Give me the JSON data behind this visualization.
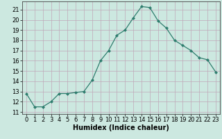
{
  "x": [
    0,
    1,
    2,
    3,
    4,
    5,
    6,
    7,
    8,
    9,
    10,
    11,
    12,
    13,
    14,
    15,
    16,
    17,
    18,
    19,
    20,
    21,
    22,
    23
  ],
  "y": [
    12.8,
    11.5,
    11.5,
    12.0,
    12.8,
    12.8,
    12.9,
    13.0,
    14.1,
    16.0,
    17.0,
    18.5,
    19.0,
    20.2,
    21.3,
    21.2,
    19.9,
    19.2,
    18.0,
    17.5,
    17.0,
    16.3,
    16.1,
    14.9
  ],
  "xlabel": "Humidex (Indice chaleur)",
  "ylim": [
    10.8,
    21.8
  ],
  "xlim": [
    -0.5,
    23.5
  ],
  "yticks": [
    11,
    12,
    13,
    14,
    15,
    16,
    17,
    18,
    19,
    20,
    21
  ],
  "xticks": [
    0,
    1,
    2,
    3,
    4,
    5,
    6,
    7,
    8,
    9,
    10,
    11,
    12,
    13,
    14,
    15,
    16,
    17,
    18,
    19,
    20,
    21,
    22,
    23
  ],
  "line_color": "#2e7d6e",
  "marker_color": "#2e7d6e",
  "bg_color": "#cce8e0",
  "grid_color": "#c0a8b8",
  "label_fontsize": 7,
  "tick_fontsize": 6
}
